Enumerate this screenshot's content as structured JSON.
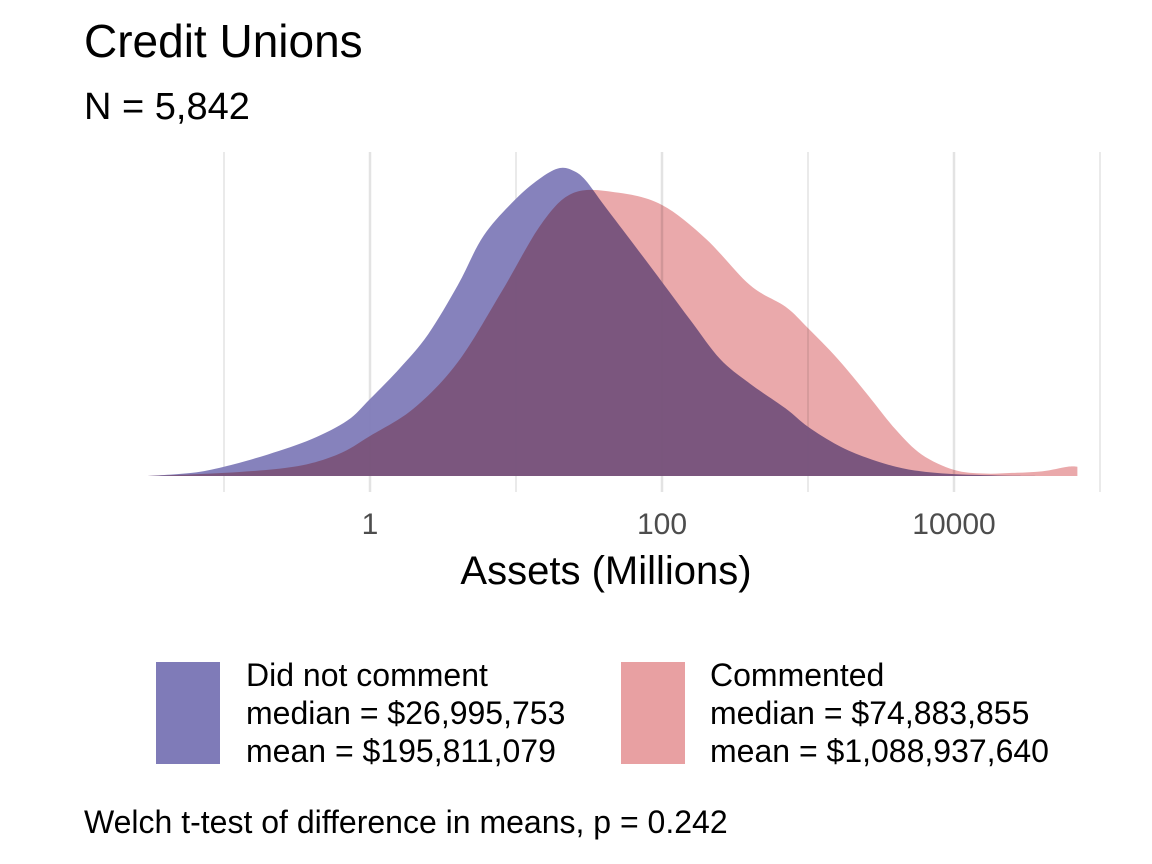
{
  "title": "Credit Unions",
  "subtitle": "N = 5,842",
  "colors": {
    "did_not_comment": "#7f7bb8",
    "commented": "#e8a0a2",
    "grid": "#e3e3e3"
  },
  "chart_data": {
    "type": "area",
    "xlabel": "Assets (Millions)",
    "ylabel": "",
    "x_scale": "log10",
    "xlim": [
      0.03,
      80000
    ],
    "x_ticks": [
      {
        "value": 1,
        "label": "1"
      },
      {
        "value": 100,
        "label": "100"
      },
      {
        "value": 10000,
        "label": "10000"
      }
    ],
    "x_minor_ticks": [
      0.1,
      10,
      1000,
      100000
    ],
    "grid": true,
    "legend_position": "bottom",
    "series": [
      {
        "name": "Did not comment",
        "color": "#7f7bb8",
        "x": [
          0.03,
          0.06,
          0.1,
          0.2,
          0.4,
          0.7,
          1.0,
          1.6,
          2.5,
          4,
          6,
          10,
          15,
          20,
          25,
          30,
          40,
          60,
          100,
          160,
          250,
          400,
          700,
          1000,
          1600,
          2500,
          4000,
          6000,
          10000,
          16000,
          25000,
          40000
        ],
        "density": [
          0.0,
          0.01,
          0.03,
          0.07,
          0.12,
          0.18,
          0.25,
          0.35,
          0.46,
          0.62,
          0.78,
          0.9,
          0.97,
          1.0,
          0.99,
          0.96,
          0.88,
          0.77,
          0.63,
          0.5,
          0.38,
          0.3,
          0.22,
          0.16,
          0.1,
          0.06,
          0.03,
          0.015,
          0.006,
          0.003,
          0.001,
          0.0
        ]
      },
      {
        "name": "Commented",
        "color": "#e8a0a2",
        "x": [
          0.03,
          0.1,
          0.3,
          0.6,
          1.0,
          2,
          4,
          8,
          15,
          25,
          50,
          100,
          200,
          400,
          700,
          1000,
          1600,
          2500,
          4000,
          6000,
          10000,
          16000,
          25000,
          40000,
          60000,
          70000
        ],
        "density": [
          0.0,
          0.01,
          0.03,
          0.07,
          0.13,
          0.22,
          0.37,
          0.6,
          0.82,
          0.92,
          0.92,
          0.88,
          0.77,
          0.62,
          0.55,
          0.48,
          0.38,
          0.27,
          0.15,
          0.07,
          0.02,
          0.008,
          0.01,
          0.015,
          0.03,
          0.03
        ]
      }
    ]
  },
  "legend": [
    {
      "key": "did_not_comment",
      "label": "Did not comment",
      "median": "median = $26,995,753",
      "mean": "mean = $195,811,079"
    },
    {
      "key": "commented",
      "label": "Commented",
      "median": "median = $74,883,855",
      "mean": "mean = $1,088,937,640"
    }
  ],
  "footnote": "Welch t-test of difference in means, p = 0.242"
}
